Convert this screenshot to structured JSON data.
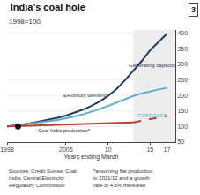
{
  "chart_data": {
    "type": "line",
    "title": "India’s coal hole",
    "subtitle": "1998=100",
    "corner_label": "3",
    "xlabel": "Years ending March",
    "xlim": [
      1998,
      2018
    ],
    "ylim": [
      50,
      410
    ],
    "xticks": [
      1998,
      2005,
      {
        "value": 2010,
        "label": "10"
      },
      {
        "value": 2015,
        "label": "15"
      },
      {
        "value": 2017,
        "label": "17"
      }
    ],
    "yticks": [
      50,
      100,
      150,
      200,
      250,
      300,
      350,
      400
    ],
    "grid": true,
    "forecast_x": 2013,
    "series": [
      {
        "x": [
          1998,
          1999,
          2000,
          2001,
          2002,
          2003,
          2004,
          2005,
          2006,
          2007,
          2008,
          2009,
          2010,
          2011,
          2012,
          2013,
          2014,
          2015,
          2016,
          2017
        ],
        "values": [
          100,
          103,
          107,
          112,
          117,
          122,
          128,
          135,
          144,
          154,
          166,
          180,
          198,
          220,
          248,
          278,
          310,
          345,
          372,
          398
        ],
        "color": "#1f3f60",
        "line_style": "solid"
      },
      {
        "x": [
          1998,
          1999,
          2000,
          2001,
          2002,
          2003,
          2004,
          2005,
          2006,
          2007,
          2008,
          2009,
          2010,
          2011,
          2012,
          2013,
          2014,
          2015,
          2016,
          2017
        ],
        "values": [
          100,
          103,
          106,
          109,
          113,
          117,
          121,
          126,
          132,
          139,
          147,
          156,
          166,
          177,
          188,
          198,
          206,
          213,
          219,
          224
        ],
        "color": "#5aafc8",
        "line_style": "solid"
      },
      {
        "x": [
          1998,
          1999,
          2000,
          2001,
          2002,
          2003,
          2004,
          2005,
          2006,
          2007,
          2008,
          2009,
          2010,
          2011,
          2012,
          2013
        ],
        "values": [
          100,
          101,
          102,
          103,
          104,
          105,
          106,
          107,
          108,
          109,
          110,
          111,
          112,
          113,
          113,
          113
        ],
        "color": "#c0392b",
        "line_style": "solid"
      },
      {
        "x": [
          2013,
          2014,
          2015,
          2016,
          2017
        ],
        "values": [
          113,
          118,
          123,
          128,
          134
        ],
        "color": "#c0392b",
        "line_style": "dashed"
      },
      {
        "type": "scatter",
        "marker": "circle",
        "x": [
          1999.3
        ],
        "values": [
          100
        ],
        "color": "#111111"
      }
    ],
    "annotations": [
      {
        "text": "Generating capacity",
        "x": 2012.2,
        "y": 296,
        "color": "#1f3f60"
      },
      {
        "text": "Electricity demand",
        "x": 2004.5,
        "y": 200,
        "color": "#1f3f60"
      },
      {
        "text": "Coal India production*",
        "x": 2001.5,
        "y": 88,
        "color": "#222222"
      },
      {
        "text": "FORECAST",
        "x": 2013.3,
        "y": 136,
        "color": "#5aafc8"
      }
    ],
    "footer_left": "Sources: Credit Suisse; Coal\nIndia; Central Electricity\nRegulatory Commission",
    "footer_right": "*assuming flat production\nin 2011/12 and a growth\nrate of 4.5% thereafter"
  }
}
